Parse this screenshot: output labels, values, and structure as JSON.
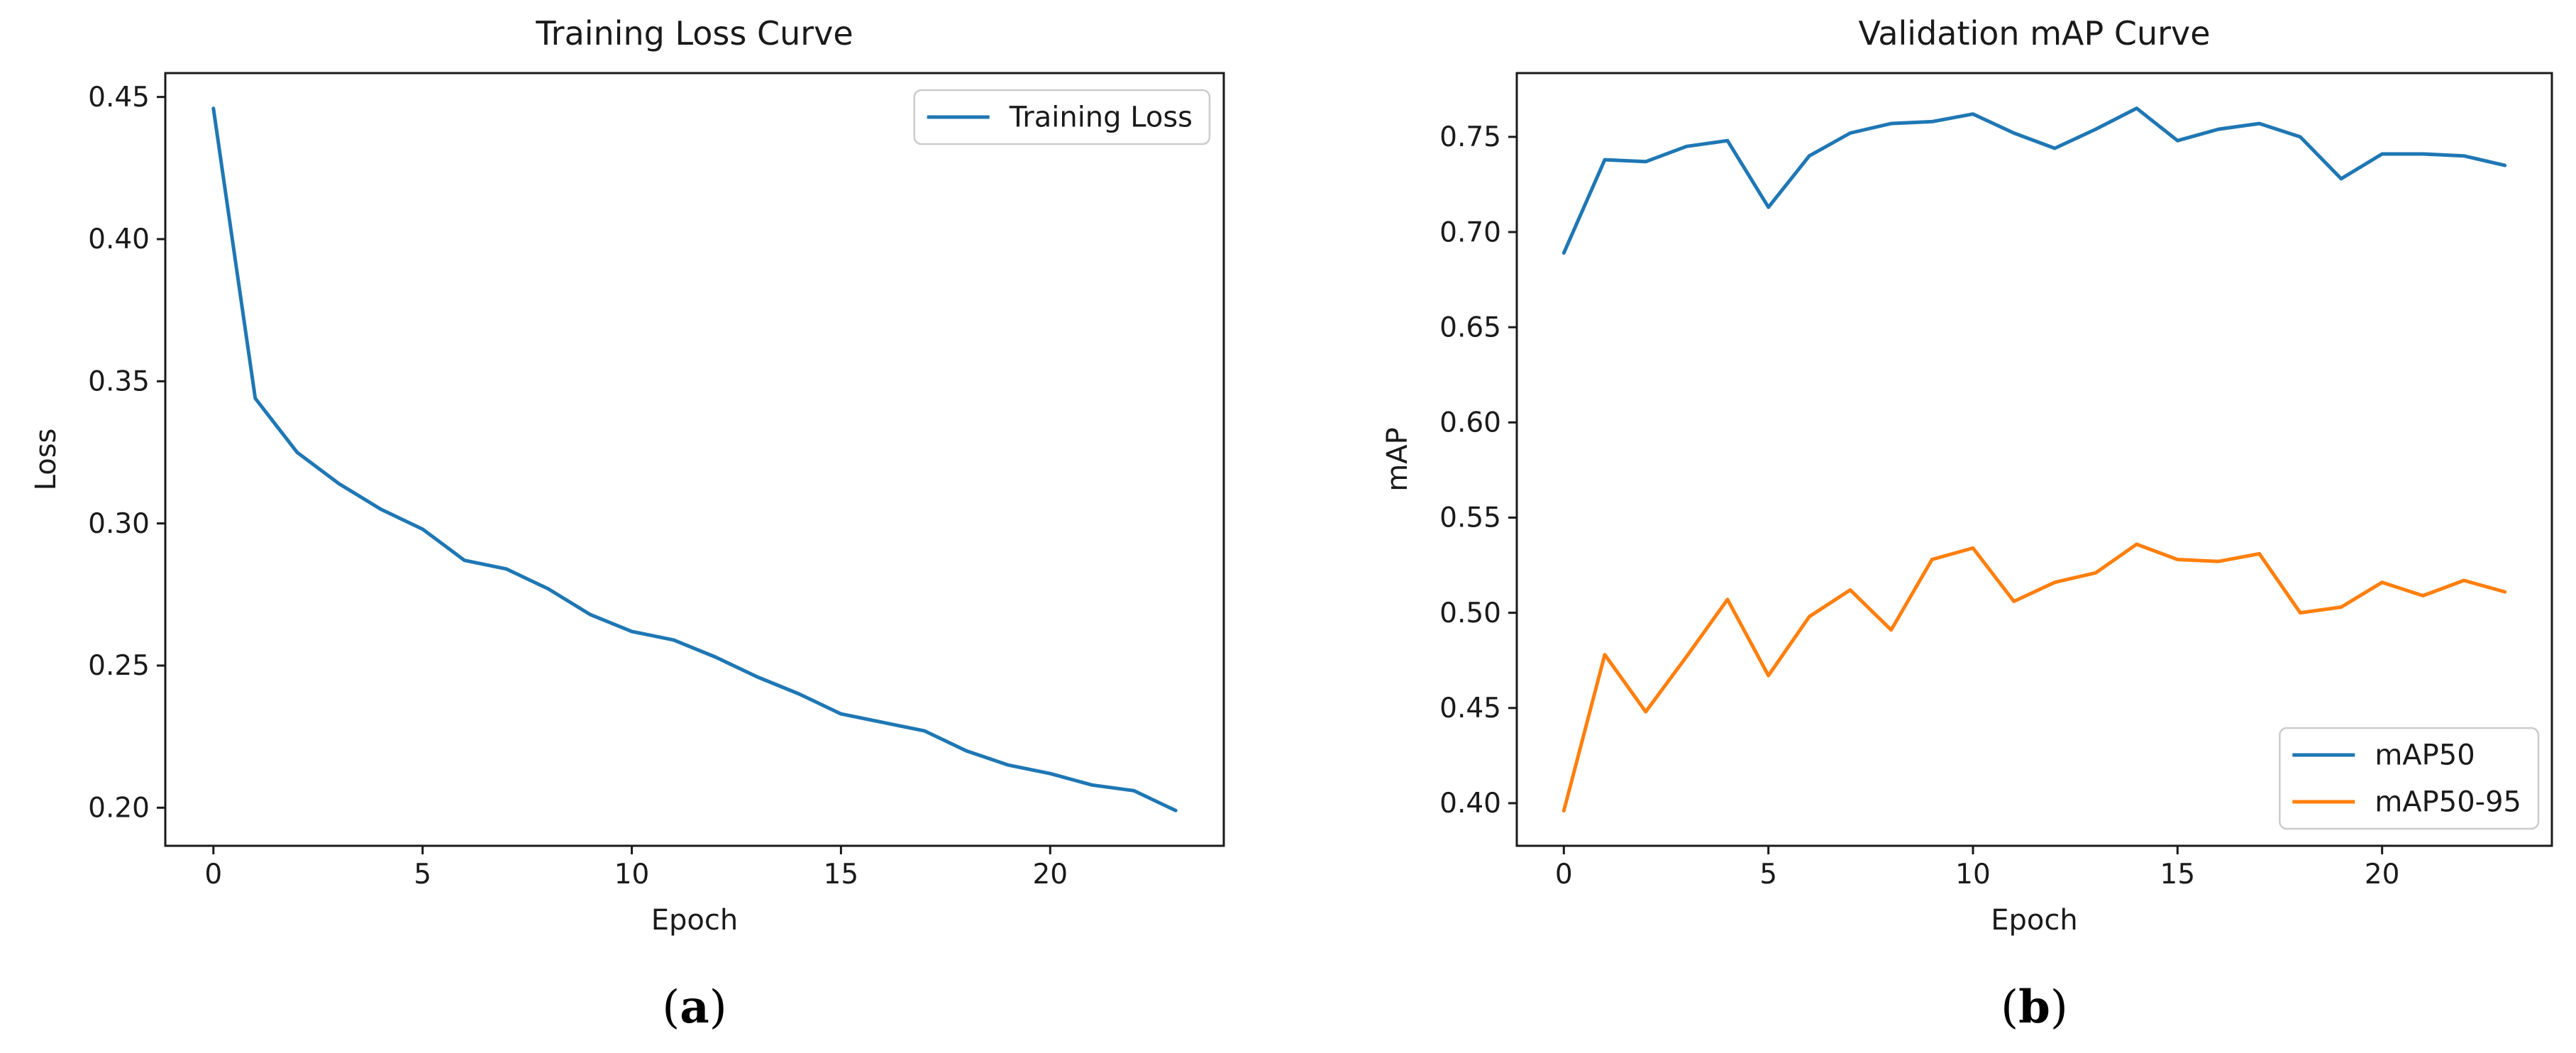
{
  "figure": {
    "background": "#ffffff",
    "captions": [
      {
        "open": "(",
        "letter": "a",
        "close": ")"
      },
      {
        "open": "(",
        "letter": "b",
        "close": ")"
      }
    ]
  },
  "style": {
    "accent_blue": "#1f77b4",
    "accent_orange": "#ff7f0e",
    "text_color": "#1a1a1a",
    "spine_color": "#1a1a1a",
    "legend_border": "#cccccc",
    "legend_fill": "#ffffff"
  },
  "chart_data": [
    {
      "type": "line",
      "title": "Training Loss Curve",
      "xlabel": "Epoch",
      "ylabel": "Loss",
      "x": [
        0,
        1,
        2,
        3,
        4,
        5,
        6,
        7,
        8,
        9,
        10,
        11,
        12,
        13,
        14,
        15,
        16,
        17,
        18,
        19,
        20,
        21,
        22,
        23
      ],
      "series": [
        {
          "name": "Training Loss",
          "color": "#1f77b4",
          "values": [
            0.446,
            0.344,
            0.325,
            0.314,
            0.305,
            0.298,
            0.287,
            0.284,
            0.277,
            0.268,
            0.262,
            0.259,
            0.253,
            0.246,
            0.24,
            0.233,
            0.23,
            0.227,
            0.22,
            0.215,
            0.212,
            0.208,
            0.206,
            0.199
          ]
        }
      ],
      "xlim": [
        -1.15,
        24.15
      ],
      "ylim": [
        0.1866,
        0.4584
      ],
      "xticks": [
        0,
        5,
        10,
        15,
        20
      ],
      "yticks": [
        0.2,
        0.25,
        0.3,
        0.35,
        0.4,
        0.45
      ],
      "ytick_decimals": 2,
      "grid": false,
      "legend": {
        "position": "upper-right",
        "entries": [
          "Training Loss"
        ]
      }
    },
    {
      "type": "line",
      "title": "Validation mAP Curve",
      "xlabel": "Epoch",
      "ylabel": "mAP",
      "x": [
        0,
        1,
        2,
        3,
        4,
        5,
        6,
        7,
        8,
        9,
        10,
        11,
        12,
        13,
        14,
        15,
        16,
        17,
        18,
        19,
        20,
        21,
        22,
        23
      ],
      "series": [
        {
          "name": "mAP50",
          "color": "#1f77b4",
          "values": [
            0.689,
            0.738,
            0.737,
            0.745,
            0.748,
            0.713,
            0.74,
            0.752,
            0.757,
            0.758,
            0.762,
            0.752,
            0.744,
            0.754,
            0.765,
            0.748,
            0.754,
            0.757,
            0.75,
            0.728,
            0.741,
            0.741,
            0.74,
            0.735
          ]
        },
        {
          "name": "mAP50-95",
          "color": "#ff7f0e",
          "values": [
            0.396,
            0.478,
            0.448,
            0.477,
            0.507,
            0.467,
            0.498,
            0.512,
            0.491,
            0.528,
            0.534,
            0.506,
            0.516,
            0.521,
            0.536,
            0.528,
            0.527,
            0.531,
            0.5,
            0.503,
            0.516,
            0.509,
            0.517,
            0.511
          ]
        }
      ],
      "xlim": [
        -1.15,
        24.15
      ],
      "ylim": [
        0.3776,
        0.7835
      ],
      "xticks": [
        0,
        5,
        10,
        15,
        20
      ],
      "yticks": [
        0.4,
        0.45,
        0.5,
        0.55,
        0.6,
        0.65,
        0.7,
        0.75
      ],
      "ytick_decimals": 2,
      "grid": false,
      "legend": {
        "position": "lower-right",
        "entries": [
          "mAP50",
          "mAP50-95"
        ]
      }
    }
  ]
}
